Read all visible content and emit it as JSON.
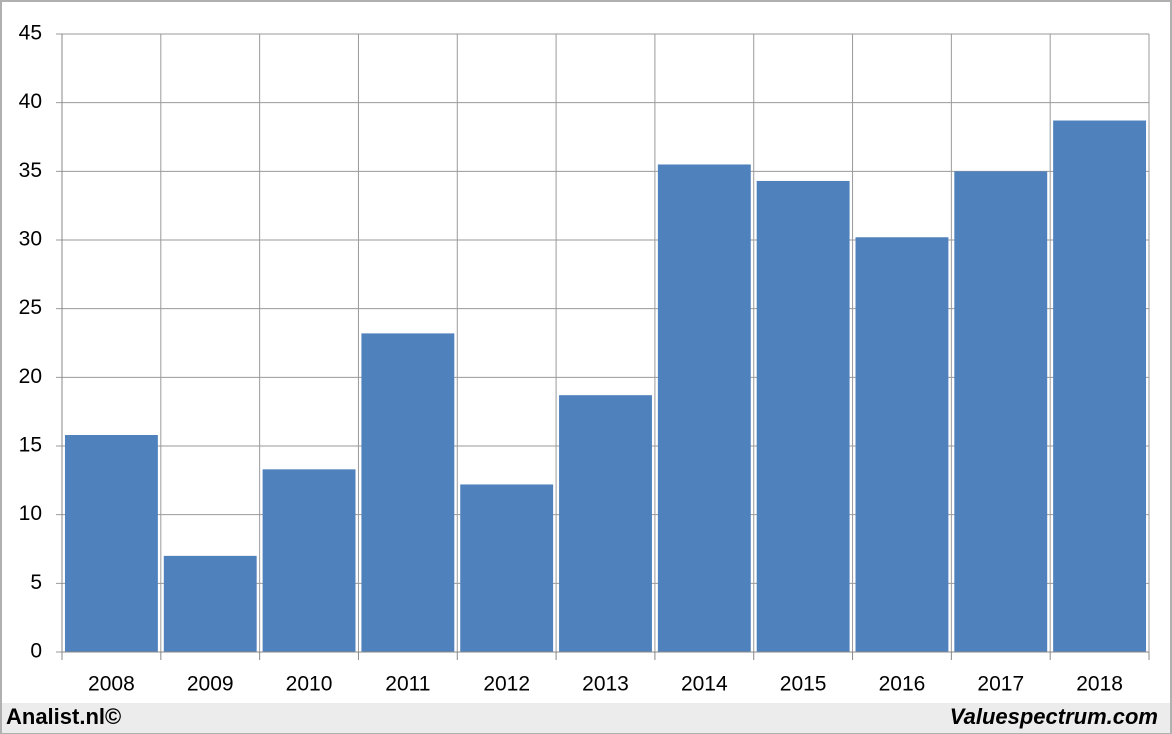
{
  "chart_data": {
    "type": "bar",
    "categories": [
      "2008",
      "2009",
      "2010",
      "2011",
      "2012",
      "2013",
      "2014",
      "2015",
      "2016",
      "2017",
      "2018"
    ],
    "values": [
      15.8,
      7.0,
      13.3,
      23.2,
      12.2,
      18.7,
      35.5,
      34.3,
      30.2,
      35.0,
      38.7
    ],
    "color": "#4f81bd",
    "ylim": [
      0,
      45
    ],
    "yticks": [
      0,
      5,
      10,
      15,
      20,
      25,
      30,
      35,
      40,
      45
    ],
    "grid": true
  },
  "footer": {
    "left": "Analist.nl©",
    "right": "Valuespectrum.com"
  }
}
